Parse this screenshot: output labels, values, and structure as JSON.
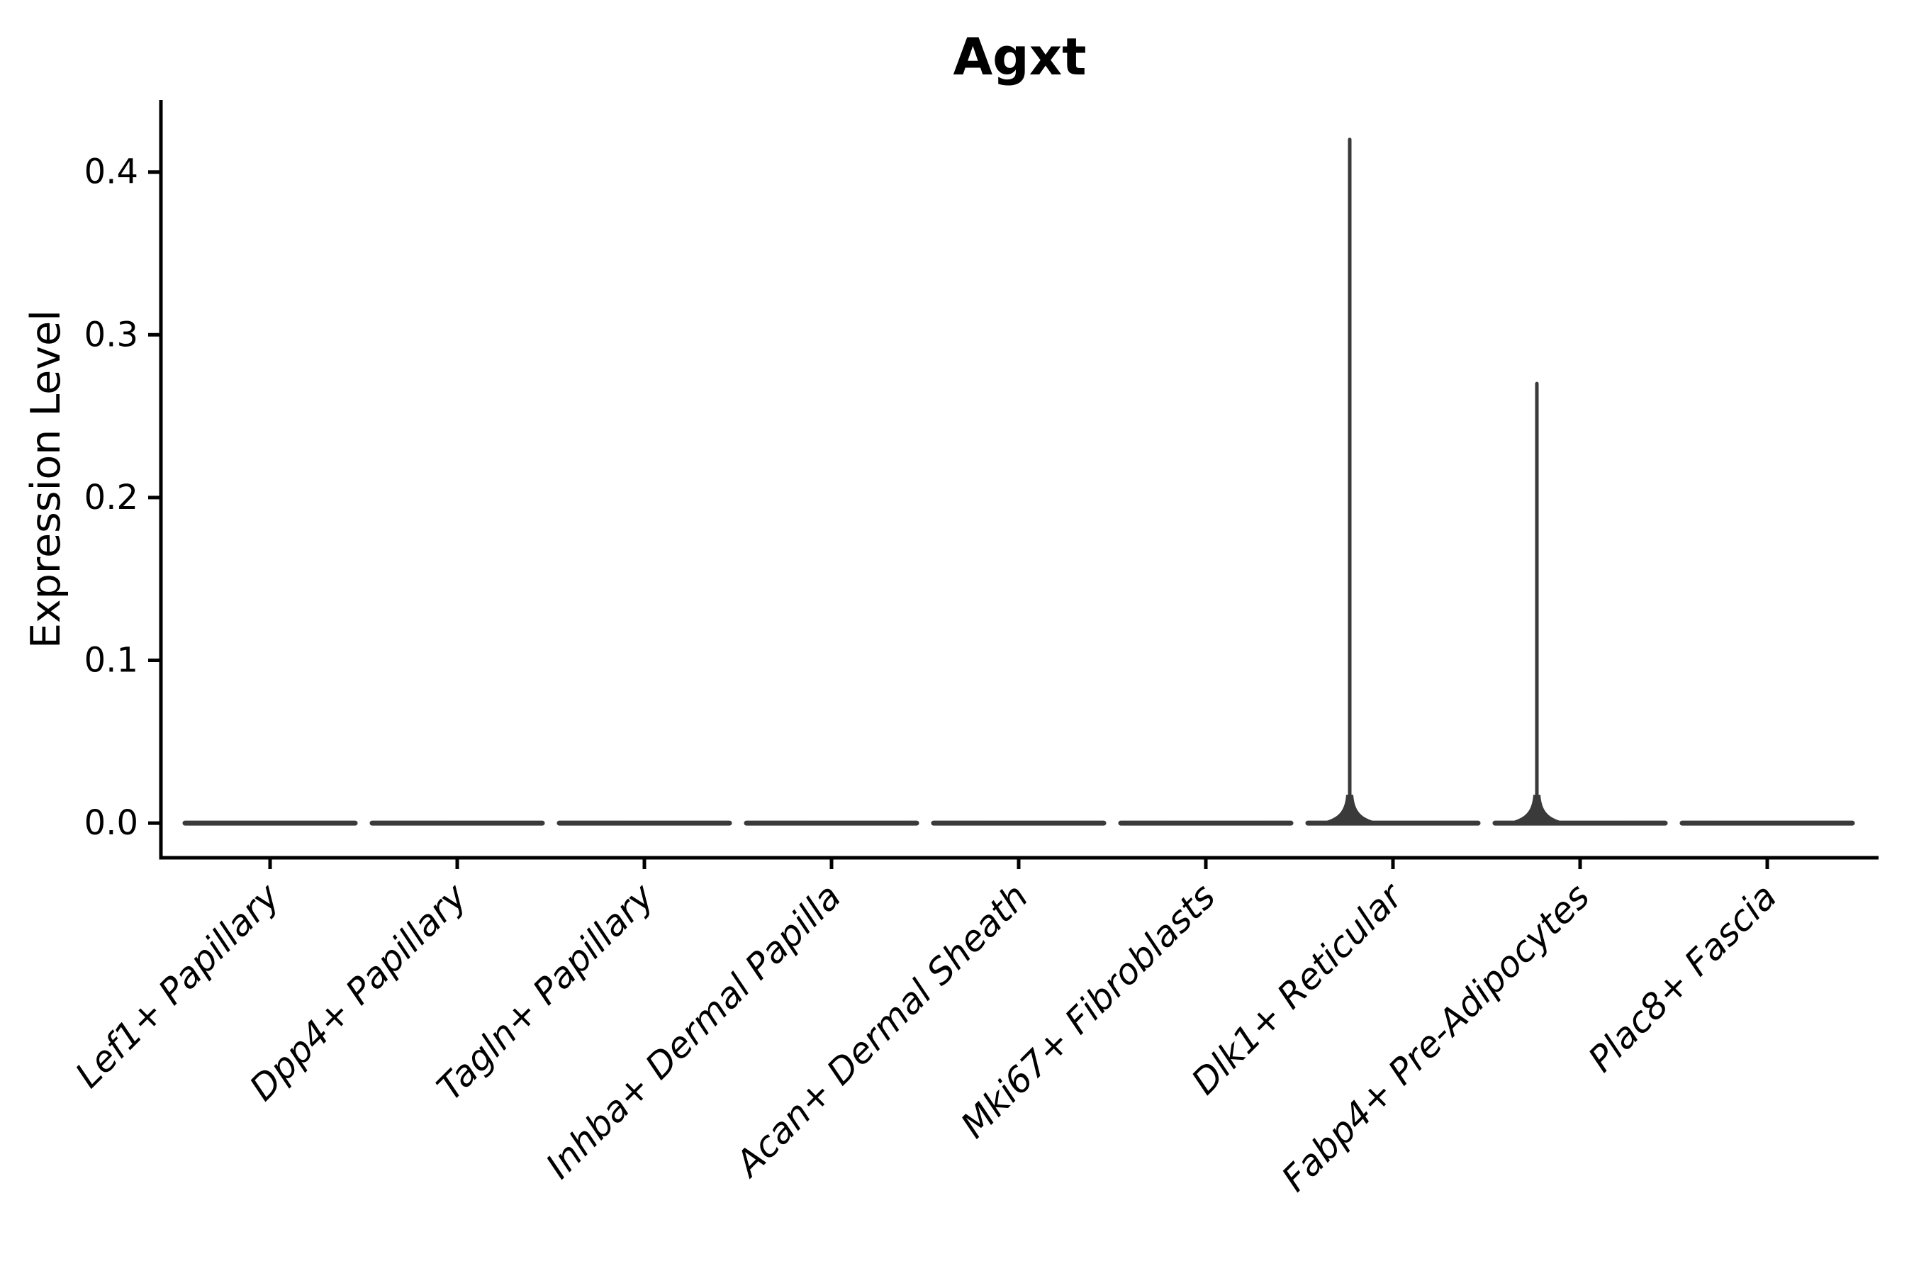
{
  "chart_data": {
    "type": "violin",
    "title": "Agxt",
    "xlabel": "",
    "ylabel": "Expression Level",
    "categories": [
      "Lef1+ Papillary",
      "Dpp4+ Papillary",
      "Tagln+ Papillary",
      "Inhba+ Dermal Papilla",
      "Acan+ Dermal Sheath",
      "Mki67+ Fibroblasts",
      "Dlk1+ Reticular",
      "Fabp4+ Pre-Adipocytes",
      "Plac8+ Fascia"
    ],
    "violins": [
      {
        "category": "Lef1+ Papillary",
        "expression_min": 0.0,
        "expression_max": 0.0
      },
      {
        "category": "Dpp4+ Papillary",
        "expression_min": 0.0,
        "expression_max": 0.0
      },
      {
        "category": "Tagln+ Papillary",
        "expression_min": 0.0,
        "expression_max": 0.0
      },
      {
        "category": "Inhba+ Dermal Papilla",
        "expression_min": 0.0,
        "expression_max": 0.0
      },
      {
        "category": "Acan+ Dermal Sheath",
        "expression_min": 0.0,
        "expression_max": 0.0
      },
      {
        "category": "Mki67+ Fibroblasts",
        "expression_min": 0.0,
        "expression_max": 0.0
      },
      {
        "category": "Dlk1+ Reticular",
        "expression_min": 0.0,
        "expression_max": 0.42
      },
      {
        "category": "Fabp4+ Pre-Adipocytes",
        "expression_min": 0.0,
        "expression_max": 0.27
      },
      {
        "category": "Plac8+ Fascia",
        "expression_min": 0.0,
        "expression_max": 0.0
      }
    ],
    "yticks": [
      0.0,
      0.1,
      0.2,
      0.3,
      0.4
    ],
    "ytick_labels": [
      "0.0",
      "0.1",
      "0.2",
      "0.3",
      "0.4"
    ],
    "ylim": [
      -0.0213,
      0.4443
    ],
    "grid": false,
    "legend": null,
    "layout": {
      "x_tick_label_rotation_deg": 45,
      "x_tick_label_style": "italic",
      "spines": [
        "left",
        "bottom"
      ]
    },
    "colors": {
      "violin": "#3a3a3a",
      "axis": "#000000",
      "text": "#000000"
    }
  }
}
